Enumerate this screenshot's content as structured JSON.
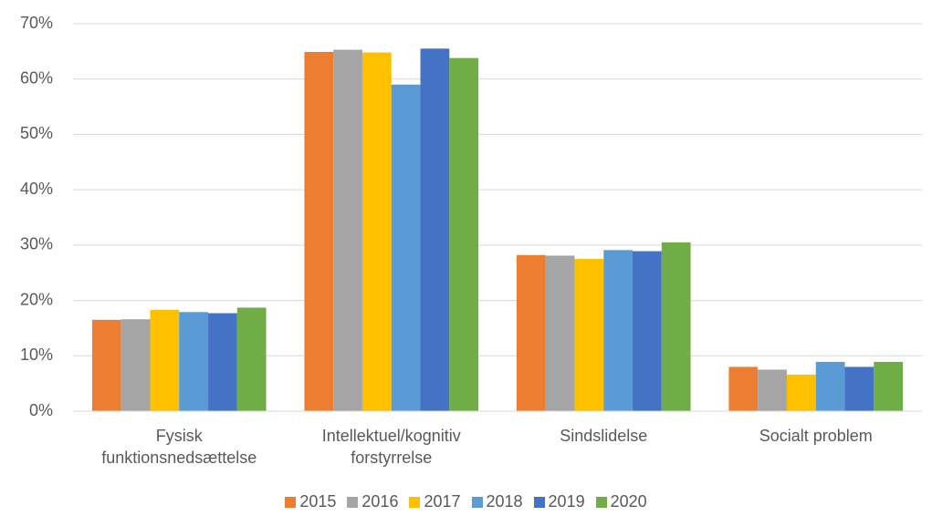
{
  "chart_data": {
    "type": "bar",
    "categories": [
      "Fysisk funktionsnedsættelse",
      "Intellektuel/kognitiv forstyrrelse",
      "Sindslidelse",
      "Socialt problem"
    ],
    "series": [
      {
        "name": "2015",
        "color": "#ed7d31",
        "values": [
          16.5,
          64.9,
          28.2,
          8.0
        ]
      },
      {
        "name": "2016",
        "color": "#a5a5a5",
        "values": [
          16.6,
          65.3,
          28.1,
          7.5
        ]
      },
      {
        "name": "2017",
        "color": "#ffc000",
        "values": [
          18.3,
          64.8,
          27.5,
          6.6
        ]
      },
      {
        "name": "2018",
        "color": "#5b9bd5",
        "values": [
          17.9,
          59.0,
          29.1,
          8.9
        ]
      },
      {
        "name": "2019",
        "color": "#4472c4",
        "values": [
          17.7,
          65.5,
          28.9,
          8.0
        ]
      },
      {
        "name": "2020",
        "color": "#70ad47",
        "values": [
          18.7,
          63.8,
          30.5,
          8.9
        ]
      }
    ],
    "ylim": [
      0,
      70
    ],
    "yticks": [
      {
        "value": 0,
        "label": "0%"
      },
      {
        "value": 10,
        "label": "10%"
      },
      {
        "value": 20,
        "label": "20%"
      },
      {
        "value": 30,
        "label": "30%"
      },
      {
        "value": 40,
        "label": "40%"
      },
      {
        "value": 50,
        "label": "50%"
      },
      {
        "value": 60,
        "label": "60%"
      },
      {
        "value": 70,
        "label": "70%"
      }
    ],
    "grid": true,
    "legend": "bottom"
  }
}
